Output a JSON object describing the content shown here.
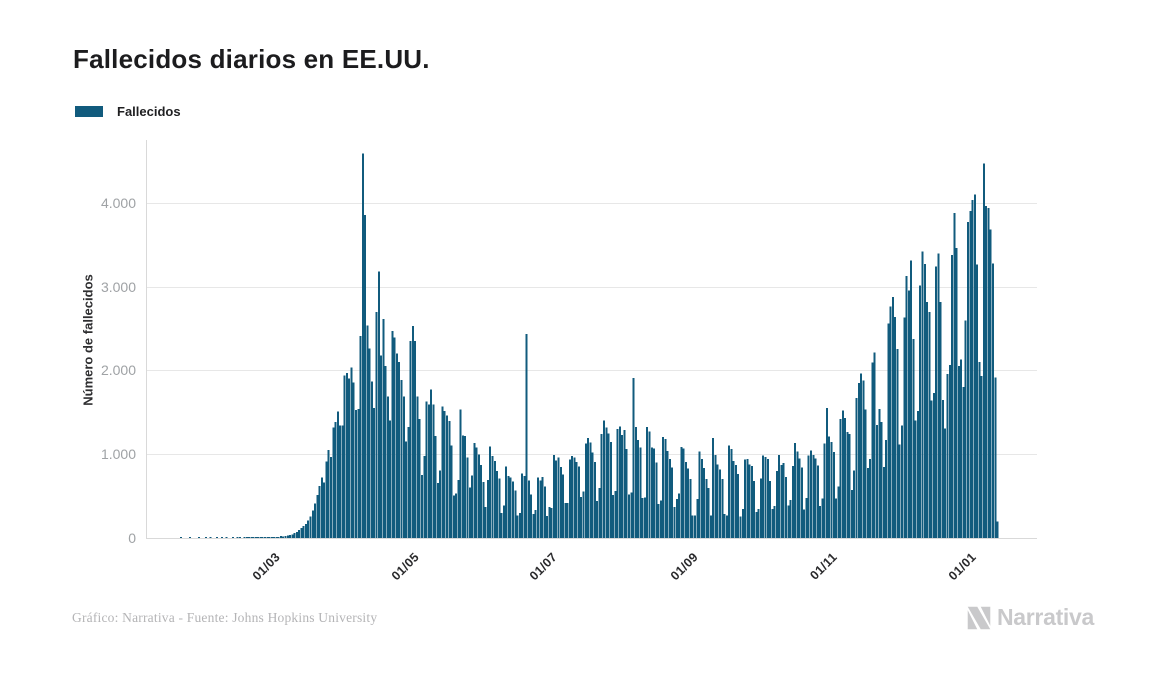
{
  "header": {
    "title": "Fallecidos diarios en EE.UU."
  },
  "legend": {
    "label": "Fallecidos"
  },
  "y_axis": {
    "title": "Número de fallecidos",
    "tick_labels": [
      "0",
      "1.000",
      "2.000",
      "3.000",
      "4.000"
    ],
    "tick_values": [
      0,
      1000,
      2000,
      3000,
      4000
    ]
  },
  "x_axis": {
    "ticks": [
      {
        "label": "01/03",
        "day_index": 39
      },
      {
        "label": "01/05",
        "day_index": 100
      },
      {
        "label": "01/07",
        "day_index": 161
      },
      {
        "label": "01/09",
        "day_index": 223
      },
      {
        "label": "01/11",
        "day_index": 284
      },
      {
        "label": "01/01",
        "day_index": 345
      }
    ]
  },
  "footer": {
    "credit": "Gráfico: Narrativa - Fuente: Johns Hopkins University",
    "brand_name": "Narrativa"
  },
  "colors": {
    "bar": "#115b7d",
    "grid": "#e7e7e7",
    "axis": "#d9d9d9",
    "title_text": "#1c1c1e",
    "y_tick_text": "#9fa2a5",
    "x_tick_text": "#2a2a2c",
    "footer_text": "#b4b4b6",
    "brand_text": "#c9c9cb"
  },
  "chart_data": {
    "type": "bar",
    "title": "Fallecidos diarios en EE.UU.",
    "ylabel": "Número de fallecidos",
    "xlabel": "",
    "ylim": [
      0,
      4750
    ],
    "grid": true,
    "legend_position": "top-left",
    "x_unit": "day",
    "x_tick_labels": [
      "01/03",
      "01/05",
      "01/07",
      "01/09",
      "01/11",
      "01/01"
    ],
    "x_tick_day_indices": [
      39,
      100,
      161,
      223,
      284,
      345
    ],
    "series": [
      {
        "name": "Fallecidos",
        "values": [
          0,
          0,
          0,
          1,
          0,
          0,
          0,
          1,
          0,
          0,
          0,
          1,
          0,
          0,
          1,
          0,
          1,
          0,
          0,
          1,
          0,
          1,
          0,
          1,
          0,
          0,
          1,
          0,
          1,
          1,
          0,
          1,
          1,
          1,
          2,
          1,
          2,
          3,
          3,
          4,
          2,
          5,
          3,
          6,
          4,
          7,
          5,
          21,
          19,
          26,
          29,
          37,
          44,
          58,
          72,
          94,
          118,
          141,
          167,
          209,
          256,
          327,
          414,
          511,
          621,
          722,
          661,
          912,
          1049,
          968,
          1321,
          1383,
          1510,
          1344,
          1342,
          1939,
          1970,
          1906,
          2035,
          1857,
          1528,
          1541,
          2408,
          4591,
          3857,
          2535,
          2260,
          1867,
          1550,
          2699,
          3179,
          2176,
          2612,
          2052,
          1687,
          1400,
          2471,
          2390,
          2201,
          2100,
          1883,
          1691,
          1154,
          1324,
          2350,
          2528,
          2353,
          1687,
          1422,
          750,
          980,
          1630,
          1595,
          1771,
          1595,
          1218,
          658,
          808,
          1568,
          1518,
          1461,
          1394,
          1104,
          505,
          532,
          693,
          1535,
          1223,
          1216,
          960,
          605,
          743,
          1134,
          1083,
          994,
          873,
          670,
          373,
          693,
          1093,
          976,
          918,
          802,
          710,
          300,
          389,
          851,
          739,
          722,
          677,
          565,
          267,
          299,
          767,
          739,
          2437,
          684,
          517,
          287,
          335,
          724,
          685,
          728,
          614,
          263,
          372,
          356,
          993,
          923,
          962,
          849,
          755,
          420,
          415,
          935,
          976,
          963,
          908,
          853,
          491,
          554,
          1126,
          1195,
          1140,
          1019,
          908,
          441,
          598,
          1244,
          1403,
          1320,
          1247,
          1148,
          512,
          559,
          1302,
          1333,
          1230,
          1290,
          1064,
          520,
          541,
          1907,
          1324,
          1169,
          1078,
          478,
          486,
          1324,
          1270,
          1082,
          1067,
          904,
          405,
          448,
          1206,
          1179,
          1037,
          943,
          843,
          369,
          463,
          532,
          1086,
          1069,
          910,
          832,
          704,
          268,
          267,
          463,
          1030,
          942,
          837,
          706,
          596,
          268,
          1193,
          990,
          877,
          817,
          704,
          287,
          267,
          1103,
          1062,
          918,
          871,
          761,
          255,
          344,
          936,
          943,
          880,
          859,
          680,
          313,
          344,
          712,
          987,
          969,
          941,
          680,
          345,
          384,
          797,
          988,
          869,
          895,
          726,
          390,
          455,
          857,
          1135,
          1030,
          951,
          843,
          340,
          477,
          985,
          1042,
          991,
          951,
          868,
          381,
          471,
          1130,
          1550,
          1210,
          1143,
          1028,
          472,
          617,
          1420,
          1520,
          1431,
          1266,
          1241,
          574,
          804,
          1673,
          1848,
          1962,
          1878,
          1531,
          838,
          944,
          2093,
          2216,
          1350,
          1538,
          1385,
          847,
          1172,
          2563,
          2763,
          2879,
          2637,
          2254,
          1115,
          1345,
          2634,
          3124,
          2952,
          3309,
          2373,
          1404,
          1514,
          3015,
          3420,
          3270,
          2814,
          2700,
          1642,
          1733,
          3239,
          3398,
          2817,
          1645,
          1306,
          1960,
          2066,
          3379,
          3880,
          3463,
          2051,
          2133,
          1803,
          2593,
          3774,
          3904,
          4033,
          4101,
          3262,
          2102,
          1932,
          4470,
          3964,
          3938,
          3684,
          3278,
          1917,
          198
        ]
      }
    ]
  }
}
